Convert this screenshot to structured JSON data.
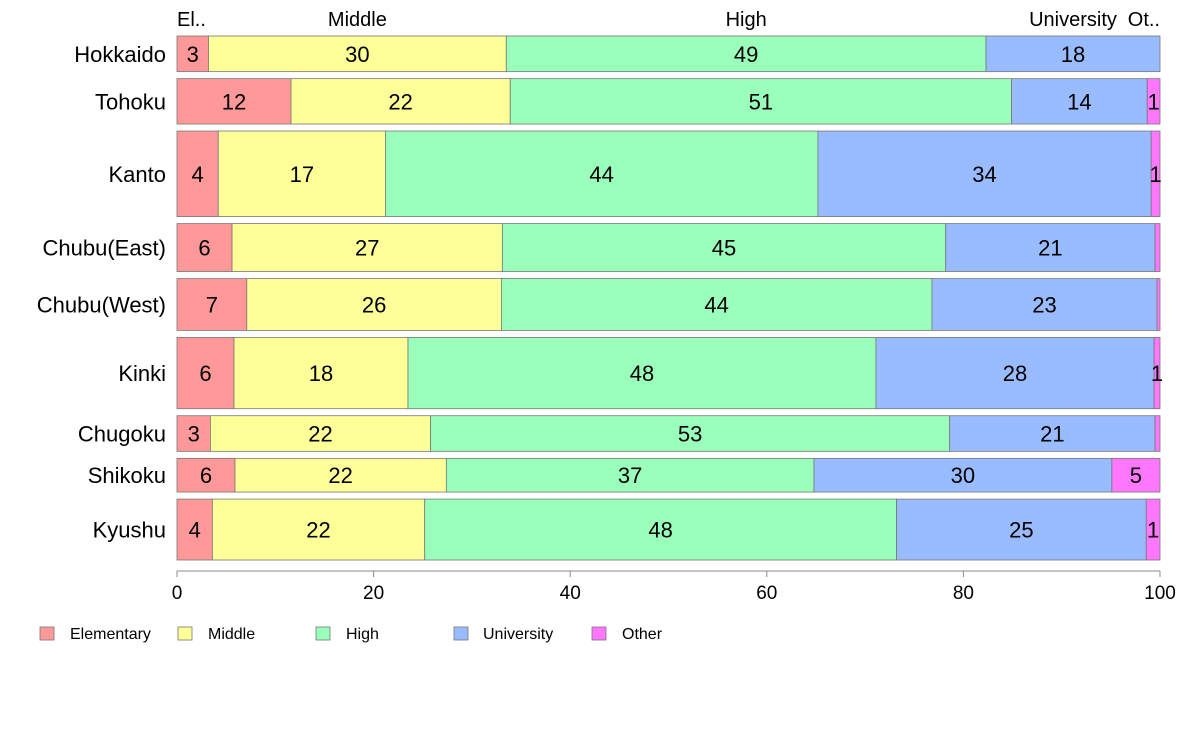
{
  "chart_data": {
    "type": "bar",
    "orientation": "horizontal",
    "stacked": true,
    "title": "",
    "xlabel": "",
    "ylabel": "",
    "xlim": [
      0,
      100
    ],
    "x_ticks": [
      0,
      20,
      40,
      60,
      80,
      100
    ],
    "grid": false,
    "legend_position": "bottom-left",
    "top_labels": [
      "El..",
      "Middle",
      "High",
      "University",
      "Ot.."
    ],
    "categories": [
      "Hokkaido",
      "Tohoku",
      "Kanto",
      "Chubu(East)",
      "Chubu(West)",
      "Kinki",
      "Chugoku",
      "Shikoku",
      "Kyushu"
    ],
    "relative_widths": [
      0.55,
      0.7,
      1.32,
      0.74,
      0.8,
      1.1,
      0.55,
      0.52,
      0.94
    ],
    "series": [
      {
        "name": "Elementary",
        "color": "#ff9999",
        "values": [
          3.2,
          11.6,
          4.2,
          5.6,
          7.1,
          5.8,
          3.4,
          5.9,
          3.6
        ],
        "labels": [
          "3",
          "12",
          "4",
          "6",
          "7",
          "6",
          "3",
          "6",
          "4"
        ]
      },
      {
        "name": "Middle",
        "color": "#ffff99",
        "values": [
          30.3,
          22.3,
          17.0,
          27.5,
          25.9,
          17.7,
          22.4,
          21.5,
          21.6
        ],
        "labels": [
          "30",
          "22",
          "17",
          "27",
          "26",
          "18",
          "22",
          "22",
          "22"
        ]
      },
      {
        "name": "High",
        "color": "#99ffbb",
        "values": [
          48.8,
          51.0,
          44.0,
          45.1,
          43.8,
          47.6,
          52.8,
          37.4,
          48.0
        ],
        "labels": [
          "49",
          "51",
          "44",
          "45",
          "44",
          "48",
          "53",
          "37",
          "48"
        ]
      },
      {
        "name": "University",
        "color": "#99bbff",
        "values": [
          17.7,
          13.8,
          33.9,
          21.3,
          22.9,
          28.3,
          20.9,
          30.3,
          25.4
        ],
        "labels": [
          "18",
          "14",
          "34",
          "21",
          "23",
          "28",
          "21",
          "30",
          "25"
        ]
      },
      {
        "name": "Other",
        "color": "#ff77ff",
        "values": [
          0.0,
          1.3,
          0.9,
          0.5,
          0.3,
          0.6,
          0.5,
          4.9,
          1.4
        ],
        "labels": [
          "",
          "1",
          "1",
          "",
          "",
          "1",
          "",
          "5",
          "1"
        ]
      }
    ]
  }
}
